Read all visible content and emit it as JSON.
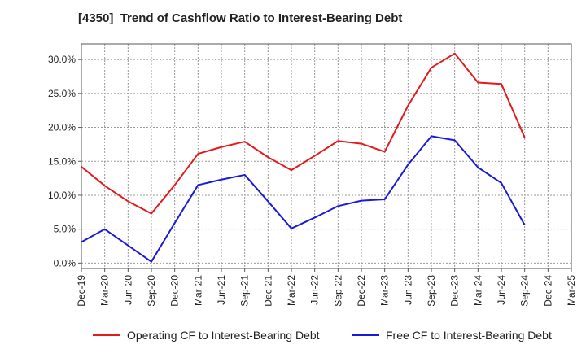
{
  "chart_data": {
    "type": "line",
    "title": "[4350]  Trend of Cashflow Ratio to Interest-Bearing Debt",
    "x": [
      "Dec-19",
      "Mar-20",
      "Jun-20",
      "Sep-20",
      "Dec-20",
      "Mar-21",
      "Jun-21",
      "Sep-21",
      "Dec-21",
      "Mar-22",
      "Jun-22",
      "Sep-22",
      "Dec-22",
      "Mar-23",
      "Jun-23",
      "Sep-23",
      "Dec-23",
      "Mar-24",
      "Jun-24",
      "Sep-24",
      "Dec-24",
      "Mar-25"
    ],
    "series": [
      {
        "name": "Operating CF to Interest-Bearing Debt",
        "color": "#e41a1c",
        "values": [
          14.2,
          11.4,
          9.1,
          7.3,
          11.5,
          16.1,
          17.1,
          17.9,
          15.6,
          13.7,
          15.8,
          18.0,
          17.6,
          16.4,
          23.2,
          28.8,
          30.9,
          26.6,
          26.4,
          18.5,
          null,
          null
        ]
      },
      {
        "name": "Free CF to Interest-Bearing Debt",
        "color": "#1a1adc",
        "values": [
          3.1,
          5.0,
          2.6,
          0.2,
          5.9,
          11.5,
          12.3,
          13.0,
          9.1,
          5.1,
          6.7,
          8.4,
          9.2,
          9.4,
          14.5,
          18.7,
          18.1,
          14.1,
          11.8,
          5.6,
          null,
          null
        ]
      }
    ],
    "yticks": [
      "0.0%",
      "5.0%",
      "10.0%",
      "15.0%",
      "20.0%",
      "25.0%",
      "30.0%"
    ],
    "ylim": [
      -0.8,
      32.3
    ],
    "grid": true,
    "legend_position": "bottom"
  }
}
